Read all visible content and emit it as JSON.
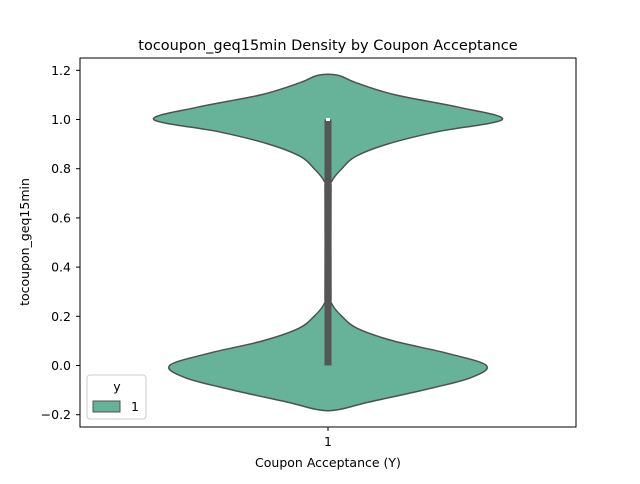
{
  "chart_data": {
    "type": "violin",
    "title": "tocoupon_geq15min Density by Coupon Acceptance",
    "xlabel": "Coupon Acceptance (Y)",
    "ylabel": "tocoupon_geq15min",
    "categories": [
      "1"
    ],
    "yticks": [
      "−0.2",
      "0.0",
      "0.2",
      "0.4",
      "0.6",
      "0.8",
      "1.0",
      "1.2"
    ],
    "ytick_values": [
      -0.2,
      0.0,
      0.2,
      0.4,
      0.6,
      0.8,
      1.0,
      1.2
    ],
    "ylim": [
      -0.25,
      1.25
    ],
    "grid": false,
    "legend": {
      "title": "y",
      "entries": [
        "1"
      ],
      "placement": "lower-left"
    },
    "series": [
      {
        "category": "1",
        "color": "#66b39a",
        "edge_color": "#505050",
        "density_profile": [
          [
            -0.18,
            0.05
          ],
          [
            -0.15,
            0.2
          ],
          [
            -0.1,
            0.48
          ],
          [
            -0.05,
            0.72
          ],
          [
            0.0,
            0.8
          ],
          [
            0.05,
            0.6
          ],
          [
            0.1,
            0.33
          ],
          [
            0.15,
            0.15
          ],
          [
            0.2,
            0.07
          ],
          [
            0.25,
            0.02
          ],
          [
            0.3,
            0.0
          ],
          [
            0.7,
            0.0
          ],
          [
            0.75,
            0.02
          ],
          [
            0.8,
            0.07
          ],
          [
            0.85,
            0.14
          ],
          [
            0.9,
            0.3
          ],
          [
            0.95,
            0.55
          ],
          [
            1.0,
            0.88
          ],
          [
            1.05,
            0.66
          ],
          [
            1.1,
            0.34
          ],
          [
            1.15,
            0.14
          ],
          [
            1.18,
            0.05
          ]
        ],
        "box": {
          "q1": 0.0,
          "median": 1.0,
          "q3": 1.0,
          "whisker_low": 0.0,
          "whisker_high": 1.0
        }
      }
    ]
  }
}
